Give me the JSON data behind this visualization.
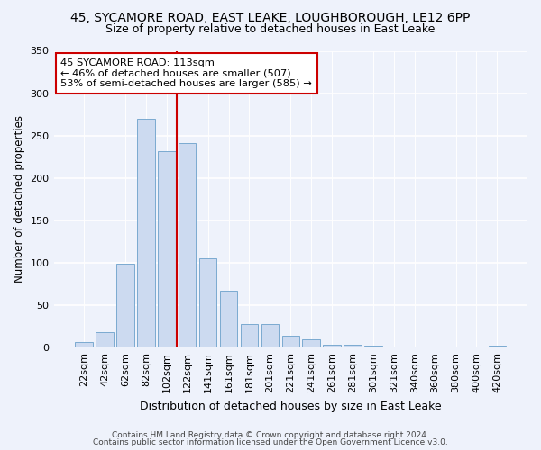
{
  "title1": "45, SYCAMORE ROAD, EAST LEAKE, LOUGHBOROUGH, LE12 6PP",
  "title2": "Size of property relative to detached houses in East Leake",
  "xlabel": "Distribution of detached houses by size in East Leake",
  "ylabel": "Number of detached properties",
  "bar_labels": [
    "22sqm",
    "42sqm",
    "62sqm",
    "82sqm",
    "102sqm",
    "122sqm",
    "141sqm",
    "161sqm",
    "181sqm",
    "201sqm",
    "221sqm",
    "241sqm",
    "261sqm",
    "281sqm",
    "301sqm",
    "321sqm",
    "340sqm",
    "360sqm",
    "380sqm",
    "400sqm",
    "420sqm"
  ],
  "bar_values": [
    7,
    18,
    99,
    270,
    232,
    241,
    105,
    67,
    28,
    28,
    14,
    10,
    4,
    3,
    2,
    0,
    0,
    0,
    0,
    0,
    2
  ],
  "bar_color": "#ccdaf0",
  "bar_edge_color": "#7aaad0",
  "background_color": "#eef2fb",
  "grid_color": "#ffffff",
  "vline_color": "#cc0000",
  "annotation_line1": "45 SYCAMORE ROAD: 113sqm",
  "annotation_line2": "← 46% of detached houses are smaller (507)",
  "annotation_line3": "53% of semi-detached houses are larger (585) →",
  "annotation_box_color": "#ffffff",
  "annotation_box_edge_color": "#cc0000",
  "footer1": "Contains HM Land Registry data © Crown copyright and database right 2024.",
  "footer2": "Contains public sector information licensed under the Open Government Licence v3.0.",
  "ylim": [
    0,
    350
  ],
  "yticks": [
    0,
    50,
    100,
    150,
    200,
    250,
    300,
    350
  ],
  "vline_pos": 5.0
}
